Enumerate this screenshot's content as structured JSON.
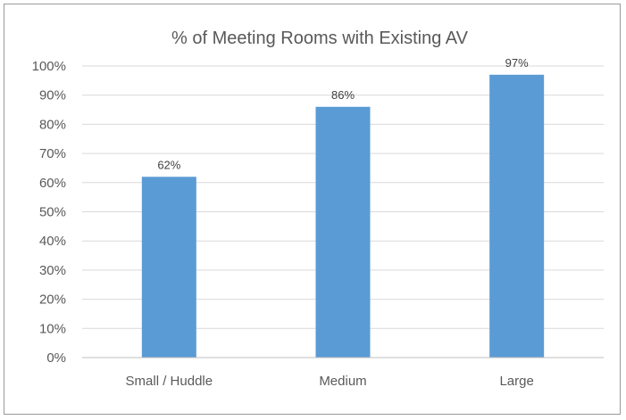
{
  "chart_data": {
    "type": "bar",
    "title": "% of Meeting Rooms with Existing AV",
    "categories": [
      "Small / Huddle",
      "Medium",
      "Large"
    ],
    "values": [
      62,
      86,
      97
    ],
    "data_labels": [
      "62%",
      "86%",
      "97%"
    ],
    "ylim": [
      0,
      100
    ],
    "yticks": [
      0,
      10,
      20,
      30,
      40,
      50,
      60,
      70,
      80,
      90,
      100
    ],
    "ytick_labels": [
      "0%",
      "10%",
      "20%",
      "30%",
      "40%",
      "50%",
      "60%",
      "70%",
      "80%",
      "90%",
      "100%"
    ],
    "xlabel": "",
    "ylabel": "",
    "grid": true,
    "legend": "none",
    "bar_color": "#5b9bd5"
  }
}
